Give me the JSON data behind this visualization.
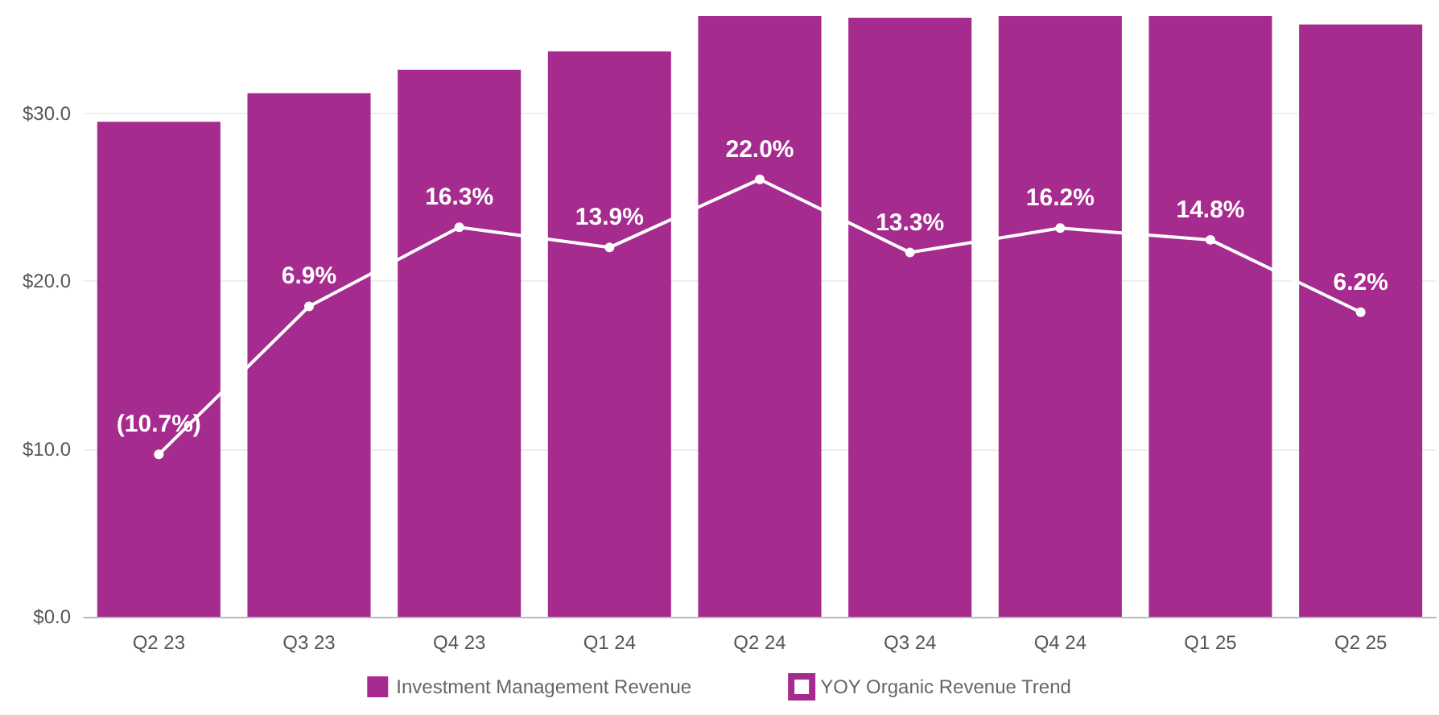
{
  "chart_data": {
    "type": "bar",
    "categories": [
      "Q2 23",
      "Q3 23",
      "Q4 23",
      "Q1 24",
      "Q2 24",
      "Q3 24",
      "Q4 24",
      "Q1 25",
      "Q2 25"
    ],
    "series": [
      {
        "name": "Investment Management Revenue",
        "color": "#a62b8e",
        "values": [
          29.5,
          31.2,
          32.6,
          33.7,
          35.8,
          35.7,
          35.8,
          35.8,
          35.3
        ]
      },
      {
        "name": "YOY Organic Revenue Trend",
        "type": "line",
        "axis": "y2",
        "color": "#ffffff",
        "marker": "circle",
        "line_style": "solid",
        "values": [
          -10.7,
          6.9,
          16.3,
          13.9,
          22.0,
          13.3,
          16.2,
          14.8,
          6.2
        ],
        "value_labels": [
          "(10.7%)",
          "6.9%",
          "16.3%",
          "13.9%",
          "22.0%",
          "13.3%",
          "16.2%",
          "14.8%",
          "6.2%"
        ]
      }
    ],
    "ylim": [
      0,
      35.8
    ],
    "yticks": [
      {
        "value": 0,
        "label": "$0.0"
      },
      {
        "value": 10,
        "label": "$10.0"
      },
      {
        "value": 20,
        "label": "$20.0"
      },
      {
        "value": 30,
        "label": "$30.0"
      }
    ],
    "y2lim": [
      -30,
      41.4
    ],
    "grid": "y",
    "legend": "bottom"
  }
}
